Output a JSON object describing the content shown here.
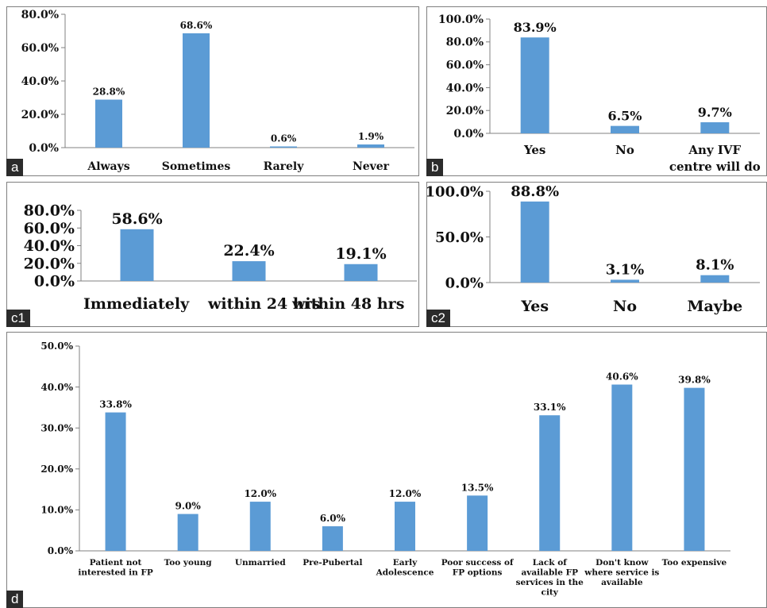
{
  "colors": {
    "bar": "#5b9bd5",
    "axis": "#808080",
    "text": "#111111"
  },
  "panels": [
    {
      "label": "a"
    },
    {
      "label": "b"
    },
    {
      "label": "c1"
    },
    {
      "label": "c2"
    },
    {
      "label": "d"
    }
  ],
  "chart_data": [
    {
      "id": "a",
      "type": "bar",
      "categories": [
        "Always",
        "Sometimes",
        "Rarely",
        "Never"
      ],
      "values": [
        28.8,
        68.6,
        0.6,
        1.9
      ],
      "data_labels": [
        "28.8%",
        "68.6%",
        "0.6%",
        "1.9%"
      ],
      "y_ticks": [
        "0.0%",
        "20.0%",
        "40.0%",
        "60.0%",
        "80.0%"
      ],
      "ylim": [
        0,
        80
      ],
      "grid": false,
      "legend": "none"
    },
    {
      "id": "b",
      "type": "bar",
      "categories": [
        [
          "Yes"
        ],
        [
          "No"
        ],
        [
          "Any IVF",
          "centre will do"
        ]
      ],
      "values": [
        83.9,
        6.5,
        9.7
      ],
      "data_labels": [
        "83.9%",
        "6.5%",
        "9.7%"
      ],
      "y_ticks": [
        "0.0%",
        "20.0%",
        "40.0%",
        "60.0%",
        "80.0%",
        "100.0%"
      ],
      "ylim": [
        0,
        100
      ],
      "grid": false,
      "legend": "none"
    },
    {
      "id": "c1",
      "type": "bar",
      "categories": [
        "Immediately",
        "within 24 hrs",
        "within 48 hrs"
      ],
      "values": [
        58.6,
        22.4,
        19.1
      ],
      "data_labels": [
        "58.6%",
        "22.4%",
        "19.1%"
      ],
      "y_ticks": [
        "0.0%",
        "20.0%",
        "40.0%",
        "60.0%",
        "80.0%"
      ],
      "ylim": [
        0,
        80
      ],
      "grid": false,
      "legend": "none"
    },
    {
      "id": "c2",
      "type": "bar",
      "categories": [
        "Yes",
        "No",
        "Maybe"
      ],
      "values": [
        88.8,
        3.1,
        8.1
      ],
      "data_labels": [
        "88.8%",
        "3.1%",
        "8.1%"
      ],
      "y_ticks": [
        "0.0%",
        "50.0%",
        "100.0%"
      ],
      "ylim": [
        0,
        100
      ],
      "grid": false,
      "legend": "none"
    },
    {
      "id": "d",
      "type": "bar",
      "categories": [
        [
          "Patient not",
          "interested in FP"
        ],
        [
          "Too young"
        ],
        [
          "Unmarried"
        ],
        [
          "Pre-Pubertal"
        ],
        [
          "Early",
          "Adolescence"
        ],
        [
          "Poor success of",
          "FP options"
        ],
        [
          "Lack of",
          "available FP",
          "services in the",
          "city"
        ],
        [
          "Don't know",
          "where service is",
          "available"
        ],
        [
          "Too expensive"
        ]
      ],
      "values": [
        33.8,
        9.0,
        12.0,
        6.0,
        12.0,
        13.5,
        33.1,
        40.6,
        39.8
      ],
      "data_labels": [
        "33.8%",
        "9.0%",
        "12.0%",
        "6.0%",
        "12.0%",
        "13.5%",
        "33.1%",
        "40.6%",
        "39.8%"
      ],
      "y_ticks": [
        "0.0%",
        "10.0%",
        "20.0%",
        "30.0%",
        "40.0%",
        "50.0%"
      ],
      "ylim": [
        0,
        50
      ],
      "grid": false,
      "legend": "none"
    }
  ]
}
